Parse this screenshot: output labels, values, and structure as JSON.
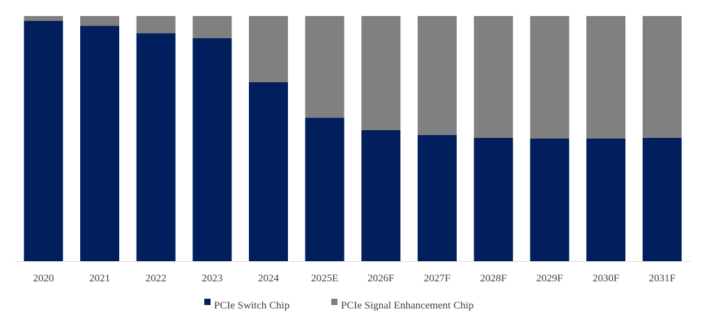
{
  "chart_data": {
    "type": "bar",
    "stacked": true,
    "normalized": true,
    "title": "",
    "xlabel": "",
    "ylabel": "",
    "ylim": [
      0,
      100
    ],
    "grid": false,
    "legend_position": "bottom-center",
    "categories": [
      "2020",
      "2021",
      "2022",
      "2023",
      "2024",
      "2025E",
      "2026F",
      "2027F",
      "2028F",
      "2029F",
      "2030F",
      "2031F"
    ],
    "series": [
      {
        "name": "PCIe Switch Chip",
        "color": "#001f5c",
        "values": [
          98,
          96,
          93,
          91,
          73,
          58.5,
          53.5,
          51.5,
          50.3,
          50,
          50,
          50.3
        ]
      },
      {
        "name": "PCIe Signal Enhancement Chip",
        "color": "#808080",
        "values": [
          2,
          4,
          7,
          9,
          27,
          41.5,
          46.5,
          48.5,
          49.7,
          50,
          50,
          49.7
        ]
      }
    ],
    "axis_color": "#d9d9d9"
  }
}
